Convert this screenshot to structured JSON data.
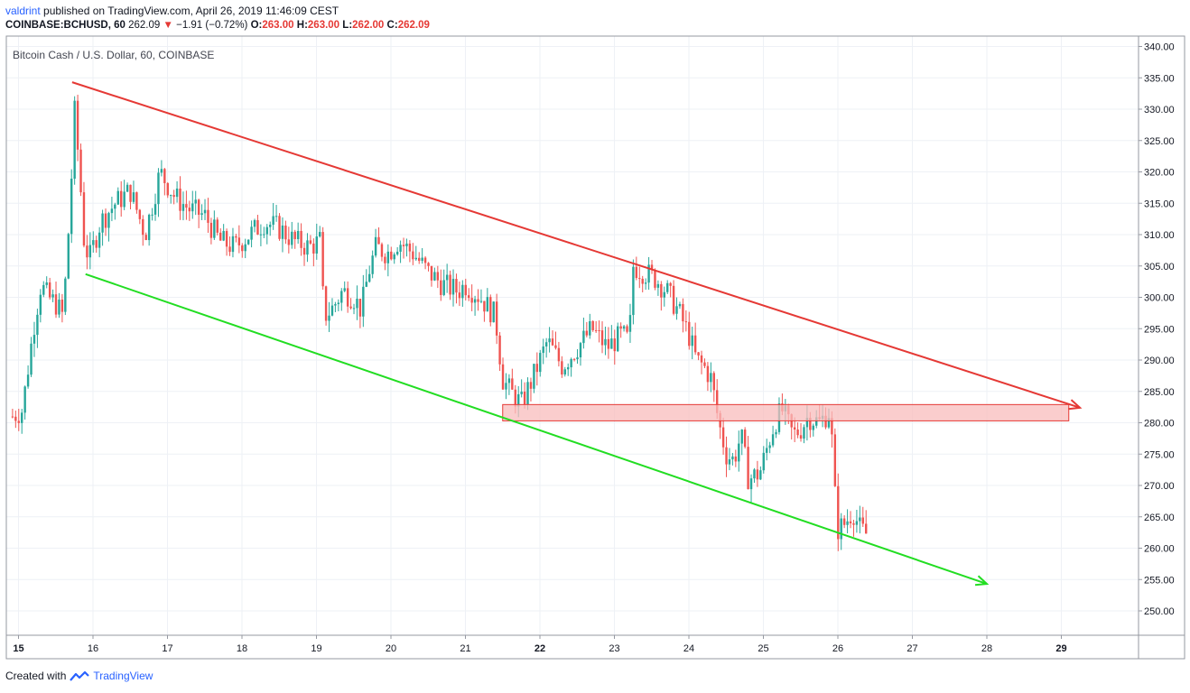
{
  "header": {
    "user": "valdrint",
    "published_text": " published on TradingView.com, April 26, 2019 11:46:09 CEST",
    "symbol": "COINBASE:BCHUSD, 60",
    "last": "262.09",
    "change": "−1.91 (−0.72%)",
    "open_label": "O:",
    "open": "263.00",
    "high_label": "H:",
    "high": "263.00",
    "low_label": "L:",
    "low": "262.00",
    "close_label": "C:",
    "close": "262.09"
  },
  "pane_title": "Bitcoin Cash / U.S. Dollar, 60, COINBASE",
  "footer": {
    "created_with": "Created with",
    "brand": "TradingView"
  },
  "colors": {
    "up": "#26a69a",
    "down": "#ef5350",
    "resistance": "#e53935",
    "support": "#22dd22",
    "zone_fill": "#f8bcbc",
    "zone_border": "#e53935",
    "grid": "#eef1f6",
    "axis": "#9598a1"
  },
  "chart_data": {
    "type": "candlestick",
    "title": "Bitcoin Cash / U.S. Dollar, 60, COINBASE",
    "x_ticks": [
      "15",
      "16",
      "17",
      "18",
      "19",
      "20",
      "21",
      "22",
      "23",
      "24",
      "25",
      "26",
      "27",
      "28",
      "29"
    ],
    "bold_x_ticks": [
      "15",
      "22",
      "29"
    ],
    "y_ticks": [
      "340.00",
      "335.00",
      "330.00",
      "325.00",
      "320.00",
      "315.00",
      "310.00",
      "305.00",
      "300.00",
      "295.00",
      "290.00",
      "285.00",
      "280.00",
      "275.00",
      "270.00",
      "265.00",
      "260.00",
      "255.00",
      "250.00"
    ],
    "ylim": [
      248,
      341
    ],
    "xlim": [
      14.9,
      30
    ],
    "series": [
      {
        "name": "resistance",
        "kind": "trendline",
        "points": [
          [
            15.72,
            334.3
          ],
          [
            29.25,
            282.4
          ]
        ],
        "arrow": true
      },
      {
        "name": "support",
        "kind": "trendline",
        "points": [
          [
            15.9,
            303.7
          ],
          [
            28.0,
            254.3
          ]
        ],
        "arrow": true
      }
    ],
    "zones": [
      {
        "x_from": 21.5,
        "x_to": 29.1,
        "y_from": 280.3,
        "y_to": 282.9
      }
    ],
    "price_path": [
      [
        14.92,
        281
      ],
      [
        15.05,
        282
      ],
      [
        15.12,
        288
      ],
      [
        15.2,
        295
      ],
      [
        15.3,
        302
      ],
      [
        15.4,
        300
      ],
      [
        15.5,
        299
      ],
      [
        15.6,
        297
      ],
      [
        15.7,
        316
      ],
      [
        15.75,
        330
      ],
      [
        15.82,
        320
      ],
      [
        15.88,
        309
      ],
      [
        15.95,
        306
      ],
      [
        16.1,
        312
      ],
      [
        16.3,
        315
      ],
      [
        16.5,
        317
      ],
      [
        16.7,
        310
      ],
      [
        16.9,
        320
      ],
      [
        17.1,
        316
      ],
      [
        17.3,
        314
      ],
      [
        17.5,
        313
      ],
      [
        17.7,
        309
      ],
      [
        17.9,
        308
      ],
      [
        18.1,
        310
      ],
      [
        18.3,
        312
      ],
      [
        18.5,
        311
      ],
      [
        18.7,
        309
      ],
      [
        18.9,
        308
      ],
      [
        19.05,
        309
      ],
      [
        19.1,
        297
      ],
      [
        19.2,
        298
      ],
      [
        19.35,
        301
      ],
      [
        19.5,
        300
      ],
      [
        19.6,
        298
      ],
      [
        19.7,
        304
      ],
      [
        19.8,
        308
      ],
      [
        19.95,
        307
      ],
      [
        20.1,
        309
      ],
      [
        20.3,
        307
      ],
      [
        20.5,
        304
      ],
      [
        20.7,
        302
      ],
      [
        20.9,
        301
      ],
      [
        21.0,
        302
      ],
      [
        21.2,
        300
      ],
      [
        21.4,
        297
      ],
      [
        21.5,
        287
      ],
      [
        21.6,
        285
      ],
      [
        21.75,
        283
      ],
      [
        21.9,
        287
      ],
      [
        22.0,
        290
      ],
      [
        22.1,
        293
      ],
      [
        22.3,
        289
      ],
      [
        22.5,
        292
      ],
      [
        22.7,
        295
      ],
      [
        22.9,
        292
      ],
      [
        23.1,
        294
      ],
      [
        23.2,
        293
      ],
      [
        23.25,
        305
      ],
      [
        23.4,
        304
      ],
      [
        23.55,
        303
      ],
      [
        23.7,
        301
      ],
      [
        23.85,
        298
      ],
      [
        24.0,
        294
      ],
      [
        24.1,
        290
      ],
      [
        24.2,
        289
      ],
      [
        24.3,
        287
      ],
      [
        24.4,
        280
      ],
      [
        24.5,
        275
      ],
      [
        24.6,
        274
      ],
      [
        24.7,
        278
      ],
      [
        24.8,
        271
      ],
      [
        24.95,
        272
      ],
      [
        25.05,
        276
      ],
      [
        25.15,
        280
      ],
      [
        25.25,
        282
      ],
      [
        25.4,
        278
      ],
      [
        25.5,
        279
      ],
      [
        25.6,
        281
      ],
      [
        25.75,
        280
      ],
      [
        25.9,
        282
      ],
      [
        25.95,
        270
      ],
      [
        26.0,
        263
      ],
      [
        26.1,
        264
      ],
      [
        26.2,
        266
      ],
      [
        26.3,
        263
      ],
      [
        26.4,
        262.09
      ]
    ]
  }
}
